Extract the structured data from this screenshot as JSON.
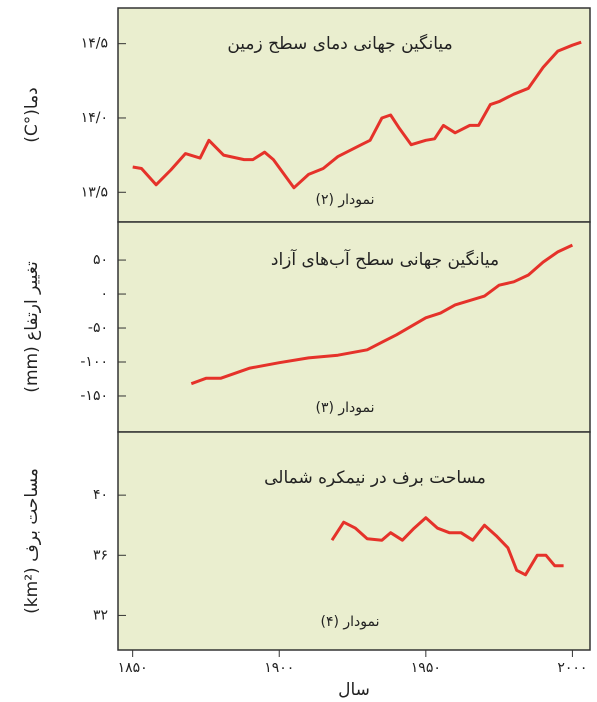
{
  "chart_data": [
    {
      "type": "line",
      "title": "میانگین جهانی دمای سطح زمین",
      "note": "نمودار (۲)",
      "ylabel": "دما(°C)",
      "color": "#e5322a",
      "xlim": [
        1845,
        2006
      ],
      "ylim": [
        13.3,
        14.74
      ],
      "yticks": [
        {
          "value": 13.5,
          "label": "۱۳/۵"
        },
        {
          "value": 14.0,
          "label": "۱۴/۰"
        },
        {
          "value": 14.5,
          "label": "۱۴/۵"
        }
      ],
      "x": [
        1850,
        1853,
        1858,
        1863,
        1868,
        1873,
        1876,
        1881,
        1888,
        1891,
        1895,
        1898,
        1905,
        1910,
        1915,
        1920,
        1928,
        1931,
        1935,
        1938,
        1941,
        1945,
        1950,
        1953,
        1956,
        1960,
        1965,
        1968,
        1972,
        1975,
        1980,
        1985,
        1990,
        1995,
        2000,
        2003
      ],
      "values": [
        13.67,
        13.66,
        13.55,
        13.65,
        13.76,
        13.73,
        13.85,
        13.75,
        13.72,
        13.72,
        13.77,
        13.72,
        13.53,
        13.62,
        13.66,
        13.74,
        13.82,
        13.85,
        14.0,
        14.02,
        13.93,
        13.82,
        13.85,
        13.86,
        13.95,
        13.9,
        13.95,
        13.95,
        14.09,
        14.11,
        14.16,
        14.2,
        14.34,
        14.45,
        14.49,
        14.51
      ]
    },
    {
      "type": "line",
      "title": "میانگین جهانی سطح آب‌های آزاد",
      "note": "نمودار (۳)",
      "ylabel": "تغییر ارتفاع (mm)",
      "color": "#e5322a",
      "xlim": [
        1845,
        2006
      ],
      "ylim": [
        -203,
        106
      ],
      "yticks": [
        {
          "value": -150,
          "label": "-۱۵۰"
        },
        {
          "value": -100,
          "label": "-۱۰۰"
        },
        {
          "value": -50,
          "label": "-۵۰"
        },
        {
          "value": 0,
          "label": "۰"
        },
        {
          "value": 50,
          "label": "۵۰"
        }
      ],
      "x": [
        1870,
        1875,
        1880,
        1890,
        1900,
        1910,
        1920,
        1930,
        1940,
        1950,
        1955,
        1960,
        1970,
        1975,
        1980,
        1985,
        1990,
        1995,
        2000
      ],
      "values": [
        -132,
        -124,
        -124,
        -109,
        -101,
        -94,
        -90,
        -82,
        -60,
        -35,
        -28,
        -16,
        -3,
        13,
        18,
        28,
        47,
        62,
        72
      ]
    },
    {
      "type": "line",
      "title": "مساحت برف در نیمکره شمالی",
      "note": "نمودار (۴)",
      "ylabel": "مساحت برف (km²)",
      "xlabel": "سال",
      "color": "#e5322a",
      "xlim": [
        1845,
        2006
      ],
      "ylim": [
        29.7,
        44.2
      ],
      "yticks": [
        {
          "value": 32,
          "label": "۳۲"
        },
        {
          "value": 36,
          "label": "۳۶"
        },
        {
          "value": 40,
          "label": "۴۰"
        }
      ],
      "xticks": [
        {
          "value": 1850,
          "label": "۱۸۵۰"
        },
        {
          "value": 1900,
          "label": "۱۹۰۰"
        },
        {
          "value": 1950,
          "label": "۱۹۵۰"
        },
        {
          "value": 2000,
          "label": "۲۰۰۰"
        }
      ],
      "x": [
        1918,
        1922,
        1926,
        1930,
        1935,
        1938,
        1942,
        1946,
        1950,
        1954,
        1958,
        1962,
        1966,
        1970,
        1974,
        1978,
        1981,
        1984,
        1988,
        1991,
        1994,
        1997
      ],
      "values": [
        37.0,
        38.2,
        37.8,
        37.1,
        37.0,
        37.5,
        37.0,
        37.8,
        38.5,
        37.8,
        37.5,
        37.5,
        37.0,
        38.0,
        37.3,
        36.5,
        35.0,
        34.7,
        36.0,
        36.0,
        35.3,
        35.3
      ]
    }
  ]
}
